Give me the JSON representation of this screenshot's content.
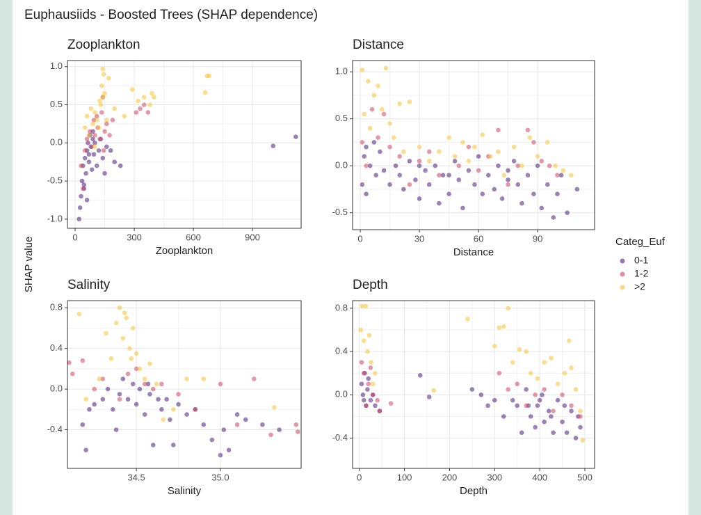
{
  "title": "Euphausiids - Boosted Trees (SHAP dependence)",
  "y_label": "SHAP value",
  "legend_title": "Categ_Euf",
  "chart_data": [
    {
      "type": "scatter",
      "title": "Zooplankton",
      "x_label": "Zooplankton",
      "xlim": [
        -39,
        1147
      ],
      "ylim": [
        -1.12,
        1.08
      ],
      "xticks": [
        0,
        300,
        600,
        900
      ],
      "yticks": [
        {
          "value": -1,
          "label": "-1.0"
        },
        -0.5,
        {
          "value": 0,
          "label": "0.0"
        },
        0.5,
        {
          "value": 1,
          "label": "1.0"
        }
      ],
      "grid": true,
      "series": [
        {
          "name": "0-1",
          "color": "#4b1d78",
          "x": [
            20,
            25,
            30,
            35,
            40,
            45,
            50,
            55,
            60,
            65,
            70,
            75,
            80,
            85,
            90,
            95,
            100,
            110,
            120,
            130,
            140,
            150,
            160,
            180,
            200,
            230,
            60,
            45,
            70,
            90,
            1005,
            1120
          ],
          "values": [
            -1.0,
            -0.85,
            -0.7,
            -0.5,
            -0.3,
            -0.6,
            -0.2,
            -0.4,
            -0.1,
            0.0,
            -0.25,
            0.1,
            -0.05,
            -0.35,
            0.05,
            -0.15,
            0.0,
            -0.3,
            -0.1,
            0.05,
            -0.2,
            -0.4,
            -0.05,
            -0.1,
            -0.25,
            -0.3,
            -0.75,
            -0.55,
            -0.15,
            0.15,
            -0.04,
            0.08
          ]
        },
        {
          "name": "1-2",
          "color": "#cf4461",
          "x": [
            30,
            50,
            60,
            75,
            85,
            95,
            100,
            115,
            125,
            135,
            140,
            145,
            150,
            160,
            175,
            190,
            310,
            330,
            350,
            370,
            40,
            110
          ],
          "values": [
            -0.3,
            -0.1,
            0.05,
            0.15,
            -0.05,
            0.3,
            0.1,
            0.2,
            0.05,
            0.4,
            0.6,
            -0.1,
            0.15,
            0.25,
            0.1,
            0.3,
            0.4,
            0.45,
            0.5,
            0.4,
            -0.6,
            0.35
          ]
        },
        {
          "name": ">2",
          "color": "#f6c22f",
          "x": [
            50,
            60,
            70,
            80,
            90,
            100,
            110,
            120,
            130,
            135,
            140,
            140,
            145,
            150,
            160,
            170,
            200,
            250,
            290,
            320,
            350,
            380,
            390,
            400,
            660,
            670,
            680,
            100,
            125
          ],
          "values": [
            0.2,
            0.35,
            0.1,
            0.45,
            0.25,
            0.4,
            0.3,
            0.2,
            0.5,
            0.75,
            0.97,
            0.6,
            0.9,
            0.65,
            0.3,
            0.85,
            0.45,
            0.35,
            0.7,
            0.55,
            0.6,
            0.5,
            0.65,
            0.6,
            0.66,
            0.88,
            0.88,
            -0.05,
            0.55
          ]
        }
      ]
    },
    {
      "type": "scatter",
      "title": "Distance",
      "x_label": "Distance",
      "xlim": [
        -3.9,
        118.9
      ],
      "ylim": [
        -0.68,
        1.12
      ],
      "xticks": [
        0,
        30,
        60,
        90
      ],
      "yticks": [
        -0.5,
        {
          "value": 0,
          "label": "0.0"
        },
        0.5,
        {
          "value": 1,
          "label": "1.0"
        }
      ],
      "grid": true,
      "series": [
        {
          "name": "0-1",
          "color": "#4b1d78",
          "x": [
            1,
            2,
            3,
            5,
            8,
            10,
            12,
            15,
            18,
            20,
            22,
            25,
            28,
            30,
            33,
            35,
            38,
            40,
            42,
            45,
            48,
            50,
            52,
            55,
            58,
            60,
            62,
            65,
            68,
            70,
            72,
            75,
            78,
            80,
            82,
            85,
            88,
            90,
            92,
            95,
            98,
            100,
            102,
            105,
            110,
            3,
            7,
            30,
            45,
            75
          ],
          "values": [
            -0.2,
            0.1,
            -0.3,
            0.0,
            -0.1,
            0.15,
            -0.05,
            -0.2,
            0.0,
            -0.1,
            -0.25,
            0.05,
            -0.15,
            -0.35,
            -0.05,
            -0.2,
            0.0,
            -0.4,
            -0.1,
            -0.3,
            0.05,
            -0.15,
            -0.45,
            -0.05,
            -0.2,
            0.1,
            -0.3,
            -0.1,
            -0.25,
            0.0,
            -0.35,
            -0.15,
            0.05,
            -0.2,
            -0.4,
            -0.1,
            -0.3,
            0.0,
            -0.45,
            -0.2,
            -0.55,
            -0.3,
            -0.1,
            -0.5,
            -0.25,
            0.2,
            0.25,
            0.0,
            -0.1,
            -0.05
          ]
        },
        {
          "name": "1-2",
          "color": "#cf4461",
          "x": [
            1,
            3,
            6,
            9,
            12,
            15,
            20,
            25,
            30,
            35,
            40,
            50,
            55,
            60,
            65,
            70,
            75,
            80,
            85,
            88,
            92,
            96,
            100
          ],
          "values": [
            0.25,
            0.0,
            0.6,
            0.3,
            0.55,
            0.2,
            0.1,
            -0.2,
            0.05,
            0.15,
            -0.1,
            0.0,
            0.2,
            -0.05,
            0.1,
            0.38,
            -0.2,
            0.0,
            0.38,
            0.25,
            0.05,
            0.0,
            -0.1
          ]
        },
        {
          "name": ">2",
          "color": "#f6c22f",
          "x": [
            1,
            2,
            4,
            5,
            7,
            9,
            11,
            13,
            15,
            17,
            20,
            22,
            25,
            30,
            35,
            40,
            45,
            48,
            52,
            55,
            58,
            62,
            66,
            70,
            73,
            78,
            82,
            86,
            90,
            95,
            99,
            103,
            107
          ],
          "values": [
            1.02,
            0.55,
            0.9,
            0.4,
            0.75,
            0.85,
            0.6,
            1.04,
            0.45,
            0.3,
            0.66,
            0.15,
            0.68,
            0.2,
            0.05,
            0.15,
            0.3,
            0.1,
            0.25,
            0.05,
            0.2,
            0.33,
            0.1,
            0.15,
            -0.1,
            0.2,
            0.0,
            0.3,
            0.1,
            0.25,
            0.0,
            -0.05,
            -0.1
          ]
        }
      ]
    },
    {
      "type": "scatter",
      "title": "Salinity",
      "x_label": "Salinity",
      "xlim": [
        34.09,
        35.48
      ],
      "ylim": [
        -0.78,
        0.87
      ],
      "xticks": [
        34.5,
        {
          "value": 35,
          "label": "35.0"
        }
      ],
      "yticks": [
        -0.4,
        {
          "value": 0,
          "label": "0.0"
        },
        0.4,
        0.8
      ],
      "grid": true,
      "series": [
        {
          "name": "0-1",
          "color": "#4b1d78",
          "x": [
            34.18,
            34.2,
            34.25,
            34.3,
            34.33,
            34.36,
            34.4,
            34.42,
            34.45,
            34.48,
            34.5,
            34.52,
            34.55,
            34.58,
            34.6,
            34.63,
            34.65,
            34.7,
            34.72,
            34.75,
            34.8,
            34.85,
            34.9,
            34.95,
            35.0,
            35.02,
            35.05,
            35.1,
            35.15,
            35.25,
            35.35,
            34.22,
            34.38,
            34.57,
            34.68
          ],
          "values": [
            -0.35,
            -0.6,
            -0.15,
            -0.1,
            0.0,
            -0.2,
            -0.05,
            0.1,
            -0.1,
            0.05,
            -0.15,
            0.0,
            -0.25,
            -0.05,
            -0.55,
            -0.1,
            -0.2,
            -0.3,
            -0.55,
            -0.15,
            -0.25,
            -0.2,
            -0.35,
            -0.5,
            -0.65,
            -0.4,
            -0.6,
            -0.25,
            -0.3,
            -0.35,
            -0.4,
            -0.2,
            -0.4,
            0.05,
            -0.1
          ]
        },
        {
          "name": "1-2",
          "color": "#cf4461",
          "x": [
            34.1,
            34.12,
            34.18,
            34.25,
            34.3,
            34.4,
            34.45,
            34.5,
            34.55,
            34.6,
            34.65,
            34.75,
            34.85,
            35.0,
            35.1,
            35.2,
            35.3,
            35.45,
            35.46
          ],
          "values": [
            0.26,
            0.15,
            0.28,
            0.0,
            0.1,
            -0.1,
            0.15,
            0.2,
            0.05,
            0.0,
            0.05,
            -0.05,
            -0.2,
            0.05,
            -0.35,
            0.1,
            -0.45,
            -0.35,
            -0.42
          ]
        },
        {
          "name": ">2",
          "color": "#f6c22f",
          "x": [
            34.16,
            34.2,
            34.28,
            34.32,
            34.35,
            34.38,
            34.4,
            34.42,
            34.44,
            34.46,
            34.48,
            34.5,
            34.52,
            34.55,
            34.58,
            34.62,
            34.66,
            34.72,
            34.8,
            34.9,
            35.32,
            34.43,
            34.47
          ],
          "values": [
            0.74,
            -0.1,
            0.1,
            0.55,
            0.3,
            0.65,
            0.8,
            0.5,
            0.7,
            0.4,
            0.6,
            0.35,
            0.2,
            0.1,
            0.25,
            0.05,
            -0.3,
            -0.2,
            0.1,
            0.1,
            -0.18,
            0.75,
            0.3
          ]
        }
      ]
    },
    {
      "type": "scatter",
      "title": "Depth",
      "x_label": "Depth",
      "xlim": [
        -15,
        521.6
      ],
      "ylim": [
        -0.68,
        0.87
      ],
      "xticks": [
        0,
        100,
        200,
        300,
        400,
        500
      ],
      "yticks": [
        -0.4,
        {
          "value": 0,
          "label": "0.0"
        },
        0.4,
        0.8
      ],
      "grid": true,
      "series": [
        {
          "name": "0-1",
          "color": "#4b1d78",
          "x": [
            5,
            8,
            10,
            12,
            15,
            18,
            20,
            25,
            30,
            35,
            45,
            135,
            155,
            250,
            270,
            285,
            300,
            320,
            340,
            350,
            360,
            370,
            380,
            390,
            395,
            400,
            410,
            420,
            430,
            440,
            450,
            460,
            470,
            480,
            485,
            490,
            375,
            405,
            425,
            455
          ],
          "values": [
            0.1,
            0.0,
            -0.05,
            0.2,
            -0.1,
            0.05,
            0.15,
            -0.05,
            0.0,
            -0.1,
            -0.15,
            0.18,
            -0.02,
            0.05,
            0.0,
            -0.1,
            -0.05,
            -0.2,
            -0.05,
            -0.1,
            -0.35,
            0.05,
            -0.2,
            -0.3,
            -0.1,
            -0.05,
            -0.25,
            -0.15,
            -0.35,
            -0.05,
            -0.25,
            -0.35,
            -0.15,
            -0.4,
            -0.2,
            -0.3,
            -0.1,
            0.0,
            -0.2,
            -0.1
          ]
        },
        {
          "name": "1-2",
          "color": "#cf4461",
          "x": [
            5,
            10,
            15,
            20,
            25,
            30,
            40,
            45,
            70,
            310,
            330,
            350,
            370,
            390,
            410,
            430,
            450,
            470,
            490
          ],
          "values": [
            0.3,
            0.2,
            -0.1,
            0.1,
            0.25,
            0.0,
            -0.05,
            -0.15,
            -0.08,
            0.2,
            0.05,
            0.1,
            -0.1,
            0.0,
            0.05,
            -0.15,
            0.0,
            -0.1,
            -0.2
          ]
        },
        {
          "name": ">2",
          "color": "#f6c22f",
          "x": [
            3,
            6,
            10,
            14,
            18,
            22,
            26,
            30,
            35,
            165,
            240,
            300,
            310,
            320,
            330,
            340,
            355,
            370,
            380,
            395,
            410,
            425,
            440,
            455,
            465,
            470,
            480,
            490,
            495
          ],
          "values": [
            0.6,
            0.82,
            0.5,
            0.82,
            0.4,
            0.55,
            0.3,
            0.1,
            0.2,
            0.04,
            0.7,
            0.45,
            0.62,
            0.63,
            0.8,
            0.3,
            0.42,
            0.4,
            0.2,
            0.15,
            0.3,
            0.34,
            0.1,
            0.2,
            0.5,
            0.25,
            0.05,
            -0.15,
            -0.42
          ]
        }
      ]
    }
  ]
}
